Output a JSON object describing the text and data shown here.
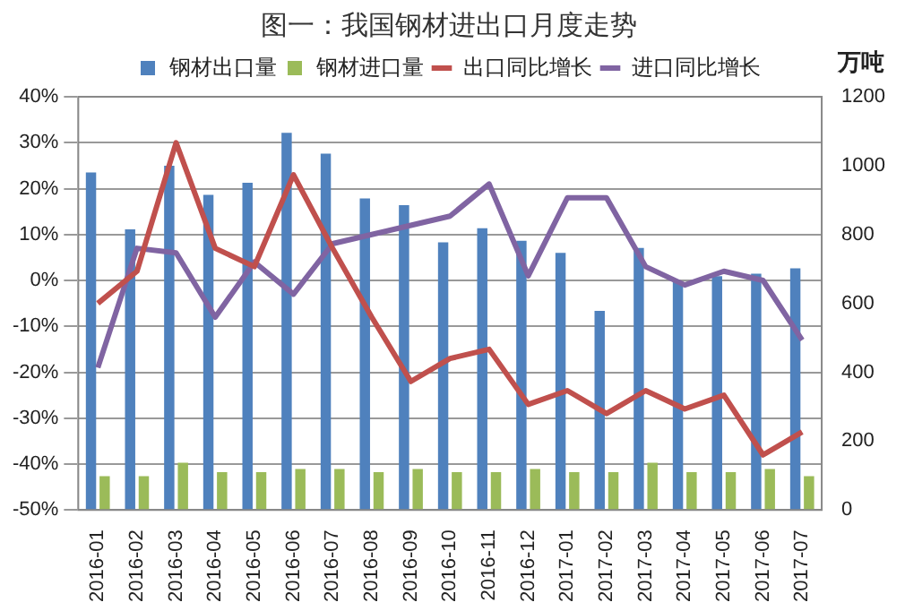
{
  "chart_data": {
    "type": "bar",
    "title": "图一：我国钢材进出口月度走势",
    "y2label": "万吨",
    "categories": [
      "2016-01",
      "2016-02",
      "2016-03",
      "2016-04",
      "2016-05",
      "2016-06",
      "2016-07",
      "2016-08",
      "2016-09",
      "2016-10",
      "2016-11",
      "2016-12",
      "2017-01",
      "2017-02",
      "2017-03",
      "2017-04",
      "2017-05",
      "2017-06",
      "2017-07"
    ],
    "series": [
      {
        "name": "钢材出口量",
        "axis": "y2",
        "color": "#4f81bd",
        "values": [
          980,
          815,
          1000,
          915,
          950,
          1095,
          1035,
          905,
          885,
          777,
          818,
          782,
          747,
          578,
          761,
          663,
          679,
          686,
          702
        ]
      },
      {
        "name": "钢材进口量",
        "axis": "y2",
        "color": "#9bbb59",
        "values": [
          98,
          98,
          137,
          110,
          110,
          119,
          119,
          110,
          119,
          110,
          110,
          119,
          110,
          110,
          137,
          110,
          110,
          119,
          98
        ]
      },
      {
        "name": "出口同比增长",
        "type": "line",
        "color": "#c0504d",
        "values": [
          -5,
          2,
          30,
          7,
          3,
          23,
          7,
          -8,
          -22,
          -17,
          -15,
          -27,
          -24,
          -29,
          -24,
          -28,
          -25,
          -38,
          -33
        ]
      },
      {
        "name": "进口同比增长",
        "type": "line",
        "color": "#8064a2",
        "values": [
          -19,
          7,
          6,
          -8,
          4,
          -3,
          8,
          10,
          12,
          14,
          21,
          1,
          18,
          18,
          3,
          -1,
          2,
          0,
          -13
        ]
      }
    ],
    "ylim": [
      -50,
      40
    ],
    "yticks": [
      {
        "value": -50,
        "label": "-50%"
      },
      {
        "value": -40,
        "label": "-40%"
      },
      {
        "value": -30,
        "label": "-30%"
      },
      {
        "value": -20,
        "label": "-20%"
      },
      {
        "value": -10,
        "label": "-10%"
      },
      {
        "value": 0,
        "label": "0%"
      },
      {
        "value": 10,
        "label": "10%"
      },
      {
        "value": 20,
        "label": "20%"
      },
      {
        "value": 30,
        "label": "30%"
      },
      {
        "value": 40,
        "label": "40%"
      }
    ],
    "y2lim": [
      0,
      1200
    ],
    "y2ticks": [
      0,
      200,
      400,
      600,
      800,
      1000,
      1200
    ],
    "grid": "y",
    "legend": "top",
    "marker": "none"
  }
}
